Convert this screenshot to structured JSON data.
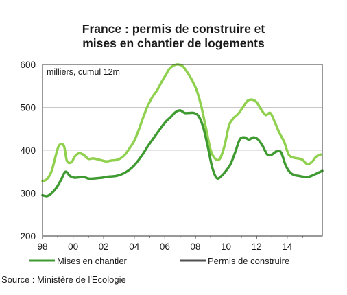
{
  "title_line1": "France : permis de construire et",
  "title_line2": "mises en chantier de logements",
  "source": "Source :  Ministère de l'Ecologie",
  "chart_data": {
    "type": "line",
    "unit_note": "milliers, cumul 12m",
    "xlim": [
      1998.0,
      2016.3
    ],
    "ylim": [
      200,
      600
    ],
    "x_ticks": [
      {
        "x": 1998,
        "label": "98"
      },
      {
        "x": 2000,
        "label": "00"
      },
      {
        "x": 2002,
        "label": "02"
      },
      {
        "x": 2004,
        "label": "04"
      },
      {
        "x": 2006,
        "label": "06"
      },
      {
        "x": 2008,
        "label": "08"
      },
      {
        "x": 2010,
        "label": "10"
      },
      {
        "x": 2012,
        "label": "12"
      },
      {
        "x": 2014,
        "label": "14"
      }
    ],
    "y_ticks": [
      200,
      300,
      400,
      500,
      600
    ],
    "grid": true,
    "legend_position": "bottom",
    "series": [
      {
        "name": "Permis de construire",
        "color": "#8fd14f",
        "x": [
          1998.0,
          1998.3,
          1998.6,
          1998.9,
          1999.1,
          1999.4,
          1999.6,
          1999.9,
          2000.1,
          2000.4,
          2000.7,
          2001.0,
          2001.3,
          2001.6,
          2001.9,
          2002.2,
          2002.5,
          2002.8,
          2003.1,
          2003.4,
          2003.7,
          2004.0,
          2004.3,
          2004.6,
          2004.9,
          2005.2,
          2005.5,
          2005.8,
          2006.1,
          2006.3,
          2006.6,
          2006.9,
          2007.2,
          2007.5,
          2007.8,
          2008.1,
          2008.4,
          2008.7,
          2009.0,
          2009.3,
          2009.6,
          2009.9,
          2010.2,
          2010.5,
          2010.8,
          2011.1,
          2011.4,
          2011.7,
          2012.0,
          2012.3,
          2012.6,
          2012.9,
          2013.2,
          2013.5,
          2013.8,
          2014.1,
          2014.4,
          2014.7,
          2015.0,
          2015.3,
          2015.6,
          2015.9,
          2016.2
        ],
        "values": [
          328,
          333,
          352,
          392,
          412,
          410,
          375,
          372,
          385,
          393,
          389,
          380,
          381,
          379,
          376,
          374,
          376,
          377,
          381,
          390,
          405,
          422,
          448,
          478,
          505,
          525,
          540,
          560,
          578,
          590,
          598,
          600,
          595,
          580,
          562,
          538,
          500,
          450,
          400,
          380,
          380,
          410,
          458,
          475,
          485,
          500,
          515,
          518,
          512,
          495,
          482,
          487,
          465,
          440,
          420,
          390,
          383,
          381,
          378,
          368,
          372,
          385,
          390
        ]
      },
      {
        "name": "Mises en chantier",
        "color": "#3f9a32",
        "x": [
          1998.0,
          1998.3,
          1998.6,
          1998.9,
          1999.2,
          1999.5,
          1999.8,
          2000.1,
          2000.4,
          2000.7,
          2001.0,
          2001.3,
          2001.6,
          2001.9,
          2002.2,
          2002.5,
          2002.8,
          2003.1,
          2003.4,
          2003.7,
          2004.0,
          2004.3,
          2004.6,
          2004.9,
          2005.2,
          2005.5,
          2005.8,
          2006.1,
          2006.4,
          2006.7,
          2007.0,
          2007.3,
          2007.6,
          2007.9,
          2008.2,
          2008.5,
          2008.8,
          2009.1,
          2009.4,
          2009.7,
          2010.0,
          2010.3,
          2010.6,
          2010.9,
          2011.2,
          2011.5,
          2011.8,
          2012.1,
          2012.4,
          2012.7,
          2013.0,
          2013.3,
          2013.6,
          2013.9,
          2014.2,
          2014.5,
          2014.8,
          2015.1,
          2015.4,
          2015.7,
          2016.0,
          2016.3
        ],
        "values": [
          295,
          293,
          300,
          312,
          330,
          350,
          340,
          336,
          337,
          338,
          334,
          334,
          335,
          336,
          338,
          339,
          340,
          343,
          348,
          355,
          365,
          378,
          393,
          410,
          425,
          440,
          455,
          468,
          478,
          489,
          493,
          487,
          487,
          487,
          480,
          455,
          410,
          360,
          335,
          340,
          352,
          368,
          395,
          425,
          430,
          425,
          430,
          425,
          410,
          390,
          390,
          397,
          395,
          365,
          348,
          342,
          340,
          338,
          338,
          342,
          347,
          352
        ]
      }
    ]
  }
}
